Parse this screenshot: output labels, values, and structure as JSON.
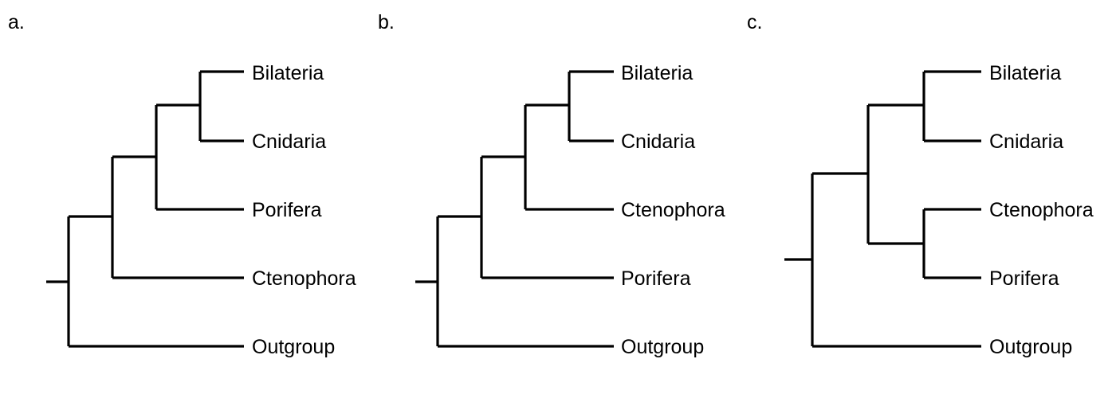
{
  "colors": {
    "line": "#000000",
    "text": "#000000",
    "background": "#ffffff"
  },
  "panels": [
    {
      "label": "a.",
      "taxa": [
        "Bilateria",
        "Cnidaria",
        "Porifera",
        "Ctenophora",
        "Outgroup"
      ]
    },
    {
      "label": "b.",
      "taxa": [
        "Bilateria",
        "Cnidaria",
        "Ctenophora",
        "Porifera",
        "Outgroup"
      ]
    },
    {
      "label": "c.",
      "taxa": [
        "Bilateria",
        "Cnidaria",
        "Ctenophora",
        "Porifera",
        "Outgroup"
      ]
    }
  ]
}
